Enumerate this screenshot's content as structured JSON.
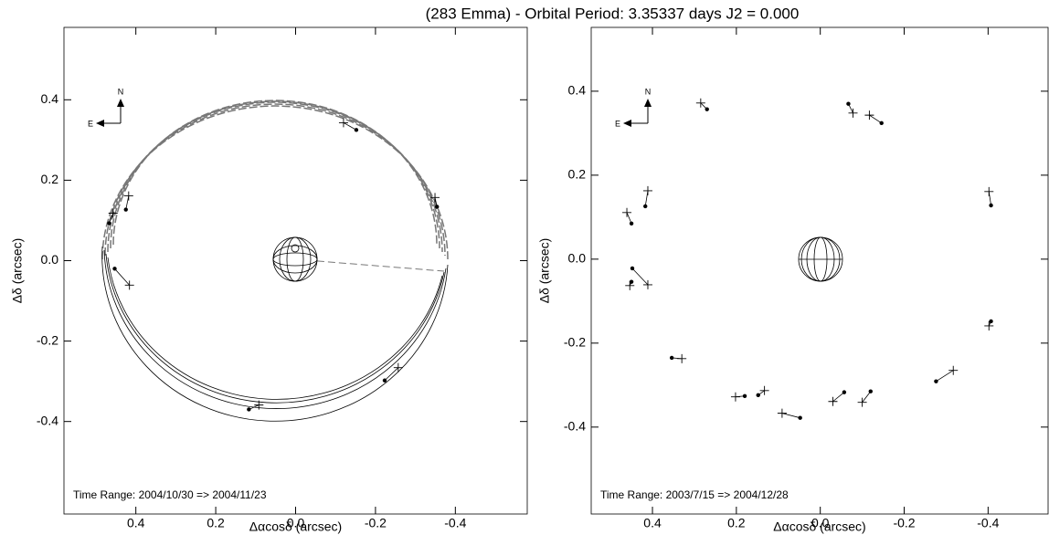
{
  "title": "(283 Emma) - Orbital Period: 3.35337 days   J2 = 0.000",
  "chart_data": [
    {
      "type": "scatter",
      "xlabel": "Δαcosδ (arcsec)",
      "ylabel": "Δδ (arcsec)",
      "annotation": "Time Range: 2004/10/30 => 2004/11/23",
      "compass": {
        "north": "N",
        "east": "E"
      },
      "xlim": [
        0.58,
        -0.58
      ],
      "ylim": [
        -0.63,
        0.58
      ],
      "xticks": [
        0.4,
        0.2,
        {
          "value": 0,
          "label": "0.0"
        },
        -0.2,
        -0.4
      ],
      "yticks": [
        -0.4,
        -0.2,
        {
          "value": 0,
          "label": "0.0"
        },
        0.2,
        0.4
      ],
      "series": [
        {
          "marker": "dot",
          "color": "#000000",
          "x": [
            0.425,
            0.467,
            0.453,
            -0.152,
            -0.354,
            0.117,
            -0.223
          ],
          "y": [
            0.127,
            0.093,
            -0.02,
            0.325,
            0.134,
            -0.37,
            -0.298
          ]
        },
        {
          "marker": "plus",
          "color": "#000000",
          "x": [
            0.418,
            0.457,
            0.416,
            -0.12,
            -0.349,
            0.092,
            -0.257
          ],
          "y": [
            0.161,
            0.118,
            -0.061,
            0.343,
            0.157,
            -0.359,
            -0.266
          ]
        }
      ]
    },
    {
      "type": "scatter",
      "xlabel": "Δαcosδ (arcsec)",
      "ylabel": "Δδ (arcsec)",
      "annotation": "Time Range: 2003/7/15 => 2004/12/28",
      "compass": {
        "north": "N",
        "east": "E"
      },
      "xlim": [
        0.546,
        -0.543
      ],
      "ylim": [
        -0.607,
        0.552
      ],
      "xticks": [
        0.4,
        0.2,
        {
          "value": 0,
          "label": "0.0"
        },
        -0.2,
        -0.4
      ],
      "yticks": [
        -0.4,
        -0.2,
        {
          "value": 0,
          "label": "0.0"
        },
        0.2,
        0.4
      ],
      "series": [
        {
          "marker": "dot",
          "color": "#000000",
          "x": [
            0.27,
            -0.067,
            -0.146,
            0.417,
            0.45,
            -0.407,
            0.448,
            0.45,
            -0.407,
            0.354,
            0.18,
            0.148,
            -0.12,
            -0.276,
            -0.057,
            0.048
          ],
          "y": [
            0.357,
            0.37,
            0.324,
            0.126,
            0.085,
            0.128,
            -0.022,
            -0.054,
            -0.148,
            -0.235,
            -0.326,
            -0.324,
            -0.315,
            -0.291,
            -0.317,
            -0.378
          ]
        },
        {
          "marker": "plus",
          "color": "#000000",
          "x": [
            0.285,
            -0.078,
            -0.117,
            0.411,
            0.461,
            -0.402,
            0.411,
            0.454,
            -0.402,
            0.33,
            0.202,
            0.133,
            -0.1,
            -0.317,
            -0.03,
            0.091
          ],
          "y": [
            0.372,
            0.348,
            0.343,
            0.163,
            0.111,
            0.161,
            -0.061,
            -0.063,
            -0.159,
            -0.237,
            -0.328,
            -0.313,
            -0.341,
            -0.265,
            -0.339,
            -0.367
          ]
        }
      ]
    }
  ]
}
